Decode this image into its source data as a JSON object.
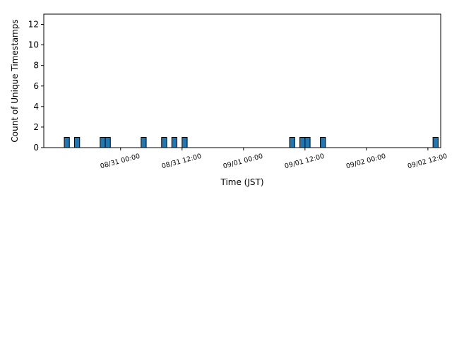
{
  "chart_data": {
    "type": "bar",
    "xlabel": "Time (JST)",
    "ylabel": "Count of Unique Timestamps",
    "ylim": [
      0,
      13
    ],
    "yticks": [
      0,
      2,
      4,
      6,
      8,
      10,
      12
    ],
    "xlim": [
      "08/30 09:00",
      "09/02 14:30"
    ],
    "xticks": [
      {
        "t": "08/31 00:00",
        "label": "08/31 00:00"
      },
      {
        "t": "08/31 12:00",
        "label": "08/31 12:00"
      },
      {
        "t": "09/01 00:00",
        "label": "09/01 00:00"
      },
      {
        "t": "09/01 12:00",
        "label": "09/01 12:00"
      },
      {
        "t": "09/02 00:00",
        "label": "09/02 00:00"
      },
      {
        "t": "09/02 12:00",
        "label": "09/02 12:00"
      }
    ],
    "bin_width_hours": 1,
    "bars": [
      {
        "t": "08/30 13:00",
        "value": 1
      },
      {
        "t": "08/30 15:00",
        "value": 1
      },
      {
        "t": "08/30 20:00",
        "value": 1
      },
      {
        "t": "08/30 21:00",
        "value": 1
      },
      {
        "t": "08/31 04:00",
        "value": 1
      },
      {
        "t": "08/31 08:00",
        "value": 1
      },
      {
        "t": "08/31 10:00",
        "value": 1
      },
      {
        "t": "08/31 12:00",
        "value": 1
      },
      {
        "t": "09/01 09:00",
        "value": 1
      },
      {
        "t": "09/01 11:00",
        "value": 1
      },
      {
        "t": "09/01 12:00",
        "value": 1
      },
      {
        "t": "09/01 15:00",
        "value": 1
      },
      {
        "t": "09/02 13:00",
        "value": 1
      }
    ],
    "bar_color": "#1f77b4",
    "bar_edge_color": "#000000"
  }
}
